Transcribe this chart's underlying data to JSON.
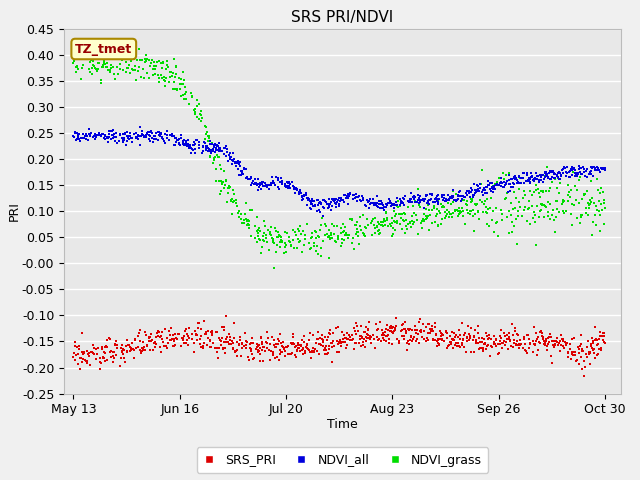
{
  "title": "SRS PRI/NDVI",
  "xlabel": "Time",
  "ylabel": "PRI",
  "ylim": [
    -0.25,
    0.45
  ],
  "annotation_text": "TZ_tmet",
  "legend_labels": [
    "SRS_PRI",
    "NDVI_all",
    "NDVI_grass"
  ],
  "colors": {
    "SRS_PRI": "#dd0000",
    "NDVI_all": "#0000dd",
    "NDVI_grass": "#00dd00"
  },
  "fig_bg_color": "#f0f0f0",
  "plot_bg_color": "#e8e8e8",
  "grid_color": "#ffffff",
  "x_tick_labels": [
    "May 13",
    "Jun 16",
    "Jul 20",
    "Aug 23",
    "Sep 26",
    "Oct 30"
  ],
  "x_tick_positions": [
    0,
    34,
    68,
    102,
    136,
    170
  ],
  "figsize": [
    6.4,
    4.8
  ],
  "dpi": 100
}
